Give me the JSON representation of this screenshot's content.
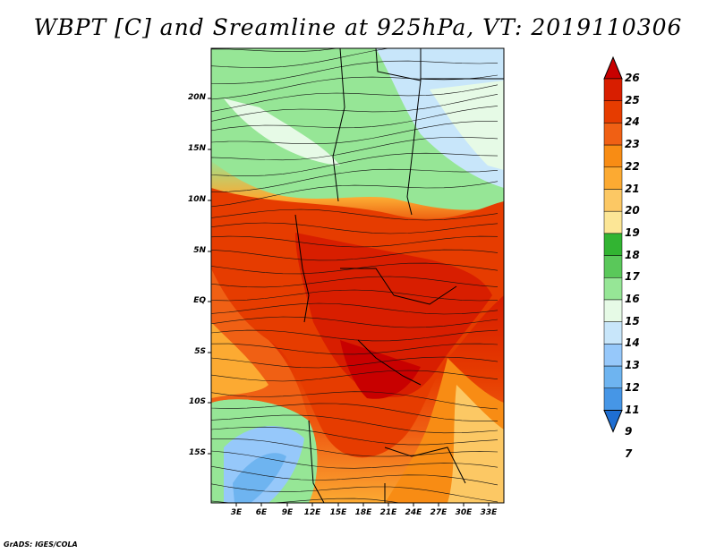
{
  "title": "WBPT [C] and Sreamline at 925hPa, VT: 2019110306",
  "credit": "GrADS: IGES/COLA",
  "map": {
    "lat_labels": [
      "20N",
      "15N",
      "10N",
      "5N",
      "EQ",
      "5S",
      "10S",
      "15S"
    ],
    "lon_labels": [
      "3E",
      "6E",
      "9E",
      "12E",
      "15E",
      "18E",
      "21E",
      "24E",
      "27E",
      "30E",
      "33E"
    ]
  },
  "colorbar": {
    "levels": [
      "26",
      "25",
      "24",
      "23",
      "22",
      "21",
      "20",
      "19",
      "18",
      "17",
      "16",
      "15",
      "14",
      "13",
      "12",
      "11",
      "9",
      "7"
    ],
    "colors": [
      "#c80000",
      "#d81e00",
      "#e63c00",
      "#f06014",
      "#f88c14",
      "#fcaa32",
      "#fcc864",
      "#fce696",
      "#32b432",
      "#5ac85a",
      "#96e696",
      "#e6fae6",
      "#c8e6fa",
      "#96c8fa",
      "#6eb4f0",
      "#4696e6",
      "#1e6ed2"
    ]
  }
}
